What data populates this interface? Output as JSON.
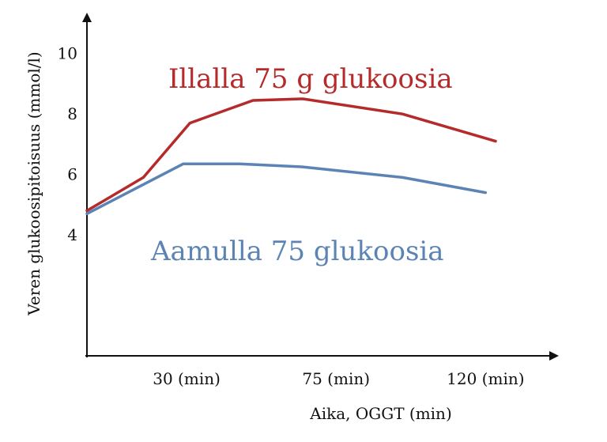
{
  "chart_data": {
    "type": "line",
    "title": "",
    "xlabel": "Aika, OGGT (min)",
    "ylabel": "Veren glukoosipitoisuus (mmol/l)",
    "xlim": [
      0,
      138
    ],
    "ylim": [
      0,
      11.3
    ],
    "x_ticks": [
      {
        "value": 30,
        "label": "30 (min)"
      },
      {
        "value": 75,
        "label": "75 (min)"
      },
      {
        "value": 120,
        "label": "120 (min)"
      }
    ],
    "y_ticks": [
      {
        "value": 4,
        "label": "4"
      },
      {
        "value": 6,
        "label": "6"
      },
      {
        "value": 8,
        "label": "8"
      },
      {
        "value": 10,
        "label": "10"
      }
    ],
    "grid": false,
    "series": [
      {
        "name": "Illalla 75 g glukoosia",
        "color": "#b52a2a",
        "x": [
          0,
          17,
          31,
          50,
          65,
          95,
          123
        ],
        "y": [
          4.8,
          5.9,
          7.7,
          8.45,
          8.5,
          8.0,
          7.1
        ]
      },
      {
        "name": "Aamulla 75 glukoosia",
        "color": "#5b84b5",
        "x": [
          0,
          29,
          46,
          65,
          95,
          120
        ],
        "y": [
          4.7,
          6.35,
          6.35,
          6.25,
          5.9,
          5.4
        ]
      }
    ]
  }
}
